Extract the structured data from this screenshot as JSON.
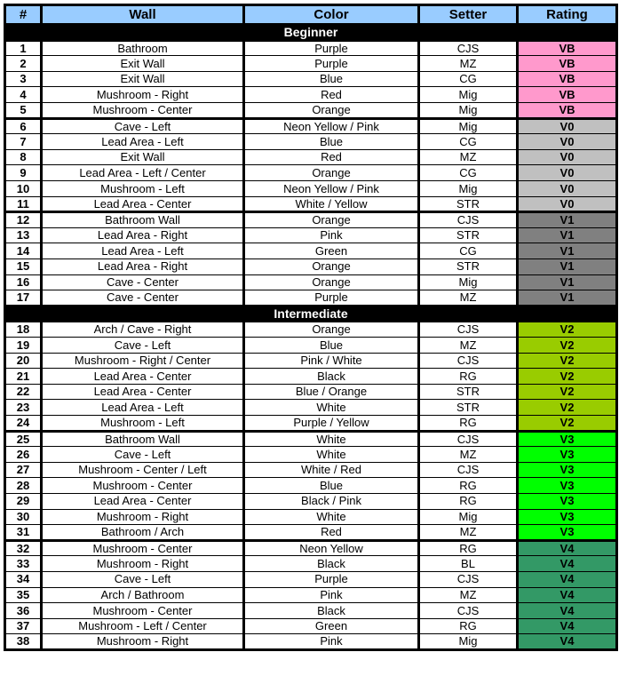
{
  "table": {
    "columns": [
      "#",
      "Wall",
      "Color",
      "Setter",
      "Rating"
    ],
    "header_bg": "#99CCFF",
    "section_bg": "#000000",
    "rating_colors": {
      "VB": "#FF99CC",
      "V0": "#C0C0C0",
      "V1": "#808080",
      "V2": "#99CC00",
      "V3": "#00FF00",
      "V4": "#339966"
    },
    "sections": [
      {
        "title": "Beginner",
        "rows": [
          {
            "num": "1",
            "wall": "Bathroom",
            "color": "Purple",
            "setter": "CJS",
            "rating": "VB"
          },
          {
            "num": "2",
            "wall": "Exit Wall",
            "color": "Purple",
            "setter": "MZ",
            "rating": "VB"
          },
          {
            "num": "3",
            "wall": "Exit Wall",
            "color": "Blue",
            "setter": "CG",
            "rating": "VB"
          },
          {
            "num": "4",
            "wall": "Mushroom - Right",
            "color": "Red",
            "setter": "Mig",
            "rating": "VB"
          },
          {
            "num": "5",
            "wall": "Mushroom - Center",
            "color": "Orange",
            "setter": "Mig",
            "rating": "VB"
          },
          {
            "num": "6",
            "wall": "Cave - Left",
            "color": "Neon Yellow / Pink",
            "setter": "Mig",
            "rating": "V0"
          },
          {
            "num": "7",
            "wall": "Lead Area - Left",
            "color": "Blue",
            "setter": "CG",
            "rating": "V0"
          },
          {
            "num": "8",
            "wall": "Exit Wall",
            "color": "Red",
            "setter": "MZ",
            "rating": "V0"
          },
          {
            "num": "9",
            "wall": "Lead Area - Left / Center",
            "color": "Orange",
            "setter": "CG",
            "rating": "V0"
          },
          {
            "num": "10",
            "wall": "Mushroom - Left",
            "color": "Neon Yellow / Pink",
            "setter": "Mig",
            "rating": "V0"
          },
          {
            "num": "11",
            "wall": "Lead Area - Center",
            "color": "White / Yellow",
            "setter": "STR",
            "rating": "V0"
          },
          {
            "num": "12",
            "wall": "Bathroom Wall",
            "color": "Orange",
            "setter": "CJS",
            "rating": "V1"
          },
          {
            "num": "13",
            "wall": "Lead Area - Right",
            "color": "Pink",
            "setter": "STR",
            "rating": "V1"
          },
          {
            "num": "14",
            "wall": "Lead Area - Left",
            "color": "Green",
            "setter": "CG",
            "rating": "V1"
          },
          {
            "num": "15",
            "wall": "Lead Area - Right",
            "color": "Orange",
            "setter": "STR",
            "rating": "V1"
          },
          {
            "num": "16",
            "wall": "Cave - Center",
            "color": "Orange",
            "setter": "Mig",
            "rating": "V1"
          },
          {
            "num": "17",
            "wall": "Cave - Center",
            "color": "Purple",
            "setter": "MZ",
            "rating": "V1"
          }
        ]
      },
      {
        "title": "Intermediate",
        "rows": [
          {
            "num": "18",
            "wall": "Arch / Cave - Right",
            "color": "Orange",
            "setter": "CJS",
            "rating": "V2"
          },
          {
            "num": "19",
            "wall": "Cave - Left",
            "color": "Blue",
            "setter": "MZ",
            "rating": "V2"
          },
          {
            "num": "20",
            "wall": "Mushroom - Right / Center",
            "color": "Pink / White",
            "setter": "CJS",
            "rating": "V2"
          },
          {
            "num": "21",
            "wall": "Lead Area - Center",
            "color": "Black",
            "setter": "RG",
            "rating": "V2"
          },
          {
            "num": "22",
            "wall": "Lead Area - Center",
            "color": "Blue / Orange",
            "setter": "STR",
            "rating": "V2"
          },
          {
            "num": "23",
            "wall": "Lead Area - Left",
            "color": "White",
            "setter": "STR",
            "rating": "V2"
          },
          {
            "num": "24",
            "wall": "Mushroom - Left",
            "color": "Purple / Yellow",
            "setter": "RG",
            "rating": "V2"
          },
          {
            "num": "25",
            "wall": "Bathroom Wall",
            "color": "White",
            "setter": "CJS",
            "rating": "V3"
          },
          {
            "num": "26",
            "wall": "Cave - Left",
            "color": "White",
            "setter": "MZ",
            "rating": "V3"
          },
          {
            "num": "27",
            "wall": "Mushroom - Center / Left",
            "color": "White / Red",
            "setter": "CJS",
            "rating": "V3"
          },
          {
            "num": "28",
            "wall": "Mushroom - Center",
            "color": "Blue",
            "setter": "RG",
            "rating": "V3"
          },
          {
            "num": "29",
            "wall": "Lead Area - Center",
            "color": "Black / Pink",
            "setter": "RG",
            "rating": "V3"
          },
          {
            "num": "30",
            "wall": "Mushroom - Right",
            "color": "White",
            "setter": "Mig",
            "rating": "V3"
          },
          {
            "num": "31",
            "wall": "Bathroom / Arch",
            "color": "Red",
            "setter": "MZ",
            "rating": "V3"
          },
          {
            "num": "32",
            "wall": "Mushroom - Center",
            "color": "Neon Yellow",
            "setter": "RG",
            "rating": "V4"
          },
          {
            "num": "33",
            "wall": "Mushroom - Right",
            "color": "Black",
            "setter": "BL",
            "rating": "V4"
          },
          {
            "num": "34",
            "wall": "Cave - Left",
            "color": "Purple",
            "setter": "CJS",
            "rating": "V4"
          },
          {
            "num": "35",
            "wall": "Arch / Bathroom",
            "color": "Pink",
            "setter": "MZ",
            "rating": "V4"
          },
          {
            "num": "36",
            "wall": "Mushroom - Center",
            "color": "Black",
            "setter": "CJS",
            "rating": "V4"
          },
          {
            "num": "37",
            "wall": "Mushroom - Left / Center",
            "color": "Green",
            "setter": "RG",
            "rating": "V4"
          },
          {
            "num": "38",
            "wall": "Mushroom - Right",
            "color": "Pink",
            "setter": "Mig",
            "rating": "V4"
          }
        ]
      }
    ]
  }
}
